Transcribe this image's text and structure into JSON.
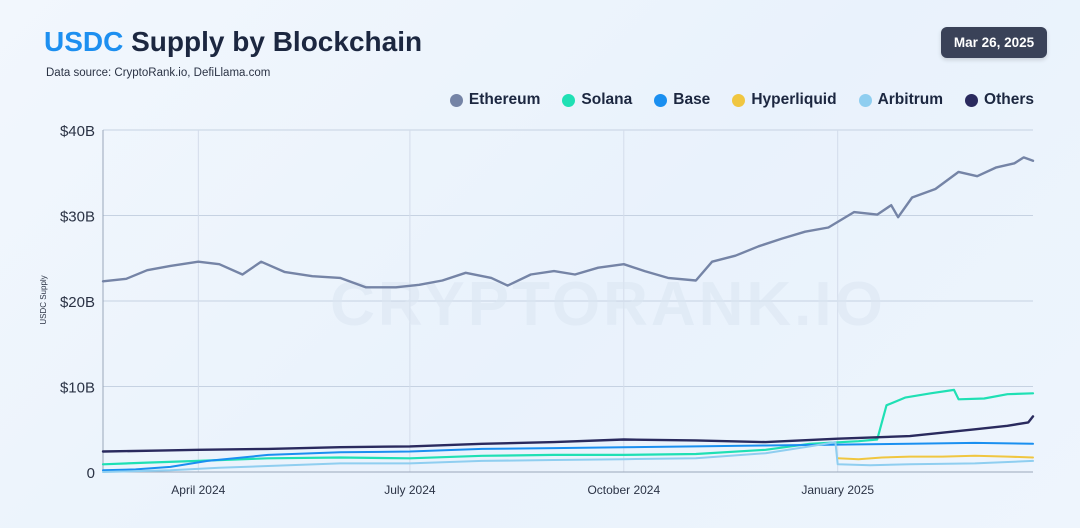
{
  "header": {
    "title_accent": "USDC",
    "title_rest": "Supply by Blockchain",
    "subtitle": "Data source: CryptoRank.io, DefiLlama.com",
    "date": "Mar 26, 2025"
  },
  "watermark": "CRYPTORANK.IO",
  "chart_data": {
    "type": "line",
    "title": "USDC Supply by Blockchain",
    "xlabel": "",
    "ylabel": "USDC Supply",
    "x_range": [
      "2024-02-20",
      "2025-03-26"
    ],
    "ylim": [
      0,
      40
    ],
    "y_unit": "billions USD",
    "y_ticks": [
      {
        "value": 0,
        "label": "0"
      },
      {
        "value": 10,
        "label": "$10B"
      },
      {
        "value": 20,
        "label": "$20B"
      },
      {
        "value": 30,
        "label": "$30B"
      },
      {
        "value": 40,
        "label": "$40B"
      }
    ],
    "x_ticks": [
      {
        "date": "2024-04-01",
        "label": "April 2024"
      },
      {
        "date": "2024-07-01",
        "label": "July 2024"
      },
      {
        "date": "2024-10-01",
        "label": "October 2024"
      },
      {
        "date": "2025-01-01",
        "label": "January 2025"
      }
    ],
    "grid": true,
    "legend_position": "top-right",
    "series": [
      {
        "name": "Ethereum",
        "color": "#7584a6",
        "stroke": 2.4,
        "points": [
          [
            "2024-02-20",
            22.3
          ],
          [
            "2024-03-01",
            22.6
          ],
          [
            "2024-03-10",
            23.6
          ],
          [
            "2024-03-20",
            24.1
          ],
          [
            "2024-04-01",
            24.6
          ],
          [
            "2024-04-10",
            24.3
          ],
          [
            "2024-04-20",
            23.1
          ],
          [
            "2024-04-28",
            24.6
          ],
          [
            "2024-05-08",
            23.4
          ],
          [
            "2024-05-20",
            22.9
          ],
          [
            "2024-06-01",
            22.7
          ],
          [
            "2024-06-12",
            21.6
          ],
          [
            "2024-06-25",
            21.6
          ],
          [
            "2024-07-05",
            21.9
          ],
          [
            "2024-07-15",
            22.4
          ],
          [
            "2024-07-25",
            23.3
          ],
          [
            "2024-08-05",
            22.7
          ],
          [
            "2024-08-12",
            21.8
          ],
          [
            "2024-08-22",
            23.1
          ],
          [
            "2024-09-01",
            23.5
          ],
          [
            "2024-09-10",
            23.1
          ],
          [
            "2024-09-20",
            23.9
          ],
          [
            "2024-10-01",
            24.3
          ],
          [
            "2024-10-10",
            23.5
          ],
          [
            "2024-10-20",
            22.7
          ],
          [
            "2024-11-01",
            22.4
          ],
          [
            "2024-11-08",
            24.6
          ],
          [
            "2024-11-18",
            25.3
          ],
          [
            "2024-11-28",
            26.4
          ],
          [
            "2024-12-08",
            27.3
          ],
          [
            "2024-12-18",
            28.1
          ],
          [
            "2024-12-28",
            28.6
          ],
          [
            "2025-01-08",
            30.4
          ],
          [
            "2025-01-18",
            30.1
          ],
          [
            "2025-01-24",
            31.2
          ],
          [
            "2025-01-27",
            29.8
          ],
          [
            "2025-02-02",
            32.1
          ],
          [
            "2025-02-12",
            33.1
          ],
          [
            "2025-02-22",
            35.1
          ],
          [
            "2025-03-02",
            34.6
          ],
          [
            "2025-03-10",
            35.6
          ],
          [
            "2025-03-18",
            36.1
          ],
          [
            "2025-03-22",
            36.8
          ],
          [
            "2025-03-26",
            36.4
          ]
        ]
      },
      {
        "name": "Solana",
        "color": "#1fe0b4",
        "stroke": 2.2,
        "points": [
          [
            "2024-02-20",
            0.9
          ],
          [
            "2024-03-10",
            1.1
          ],
          [
            "2024-04-01",
            1.3
          ],
          [
            "2024-05-01",
            1.6
          ],
          [
            "2024-06-01",
            1.7
          ],
          [
            "2024-07-01",
            1.6
          ],
          [
            "2024-08-01",
            1.9
          ],
          [
            "2024-09-01",
            2.0
          ],
          [
            "2024-10-01",
            2.0
          ],
          [
            "2024-11-01",
            2.1
          ],
          [
            "2024-12-01",
            2.6
          ],
          [
            "2024-12-20",
            3.3
          ],
          [
            "2025-01-10",
            3.6
          ],
          [
            "2025-01-18",
            3.8
          ],
          [
            "2025-01-22",
            7.8
          ],
          [
            "2025-01-30",
            8.7
          ],
          [
            "2025-02-10",
            9.2
          ],
          [
            "2025-02-20",
            9.6
          ],
          [
            "2025-02-22",
            8.5
          ],
          [
            "2025-03-05",
            8.6
          ],
          [
            "2025-03-15",
            9.1
          ],
          [
            "2025-03-26",
            9.2
          ]
        ]
      },
      {
        "name": "Base",
        "color": "#1a8ff0",
        "stroke": 2.0,
        "points": [
          [
            "2024-02-20",
            0.2
          ],
          [
            "2024-03-05",
            0.3
          ],
          [
            "2024-03-20",
            0.6
          ],
          [
            "2024-04-05",
            1.3
          ],
          [
            "2024-05-01",
            2.0
          ],
          [
            "2024-06-01",
            2.3
          ],
          [
            "2024-07-01",
            2.4
          ],
          [
            "2024-08-01",
            2.7
          ],
          [
            "2024-09-01",
            2.8
          ],
          [
            "2024-10-01",
            2.9
          ],
          [
            "2024-11-01",
            3.0
          ],
          [
            "2024-12-01",
            3.1
          ],
          [
            "2025-01-01",
            3.2
          ],
          [
            "2025-02-01",
            3.3
          ],
          [
            "2025-03-01",
            3.4
          ],
          [
            "2025-03-26",
            3.3
          ]
        ]
      },
      {
        "name": "Hyperliquid",
        "color": "#f0c640",
        "stroke": 2.0,
        "points": [
          [
            "2025-01-01",
            1.6
          ],
          [
            "2025-01-10",
            1.5
          ],
          [
            "2025-01-20",
            1.7
          ],
          [
            "2025-02-01",
            1.8
          ],
          [
            "2025-02-15",
            1.8
          ],
          [
            "2025-03-01",
            1.9
          ],
          [
            "2025-03-15",
            1.8
          ],
          [
            "2025-03-26",
            1.7
          ]
        ]
      },
      {
        "name": "Arbitrum",
        "color": "#8fcef0",
        "stroke": 2.0,
        "points": [
          [
            "2024-02-20",
            0.0
          ],
          [
            "2024-03-20",
            0.2
          ],
          [
            "2024-04-10",
            0.5
          ],
          [
            "2024-05-01",
            0.7
          ],
          [
            "2024-06-01",
            1.0
          ],
          [
            "2024-07-01",
            1.0
          ],
          [
            "2024-08-01",
            1.3
          ],
          [
            "2024-09-01",
            1.4
          ],
          [
            "2024-10-01",
            1.5
          ],
          [
            "2024-11-01",
            1.6
          ],
          [
            "2024-12-01",
            2.2
          ],
          [
            "2024-12-20",
            3.0
          ],
          [
            "2024-12-31",
            3.5
          ],
          [
            "2025-01-01",
            0.9
          ],
          [
            "2025-01-15",
            0.8
          ],
          [
            "2025-02-01",
            0.9
          ],
          [
            "2025-03-01",
            1.0
          ],
          [
            "2025-03-26",
            1.3
          ]
        ]
      },
      {
        "name": "Others",
        "color": "#2a2a5e",
        "stroke": 2.4,
        "points": [
          [
            "2024-02-20",
            2.4
          ],
          [
            "2024-03-15",
            2.5
          ],
          [
            "2024-04-01",
            2.6
          ],
          [
            "2024-05-01",
            2.7
          ],
          [
            "2024-06-01",
            2.9
          ],
          [
            "2024-07-01",
            3.0
          ],
          [
            "2024-08-01",
            3.3
          ],
          [
            "2024-09-01",
            3.5
          ],
          [
            "2024-10-01",
            3.8
          ],
          [
            "2024-11-01",
            3.7
          ],
          [
            "2024-12-01",
            3.5
          ],
          [
            "2025-01-01",
            3.9
          ],
          [
            "2025-02-01",
            4.2
          ],
          [
            "2025-02-15",
            4.6
          ],
          [
            "2025-03-01",
            5.0
          ],
          [
            "2025-03-15",
            5.4
          ],
          [
            "2025-03-24",
            5.8
          ],
          [
            "2025-03-26",
            6.5
          ]
        ]
      }
    ]
  }
}
